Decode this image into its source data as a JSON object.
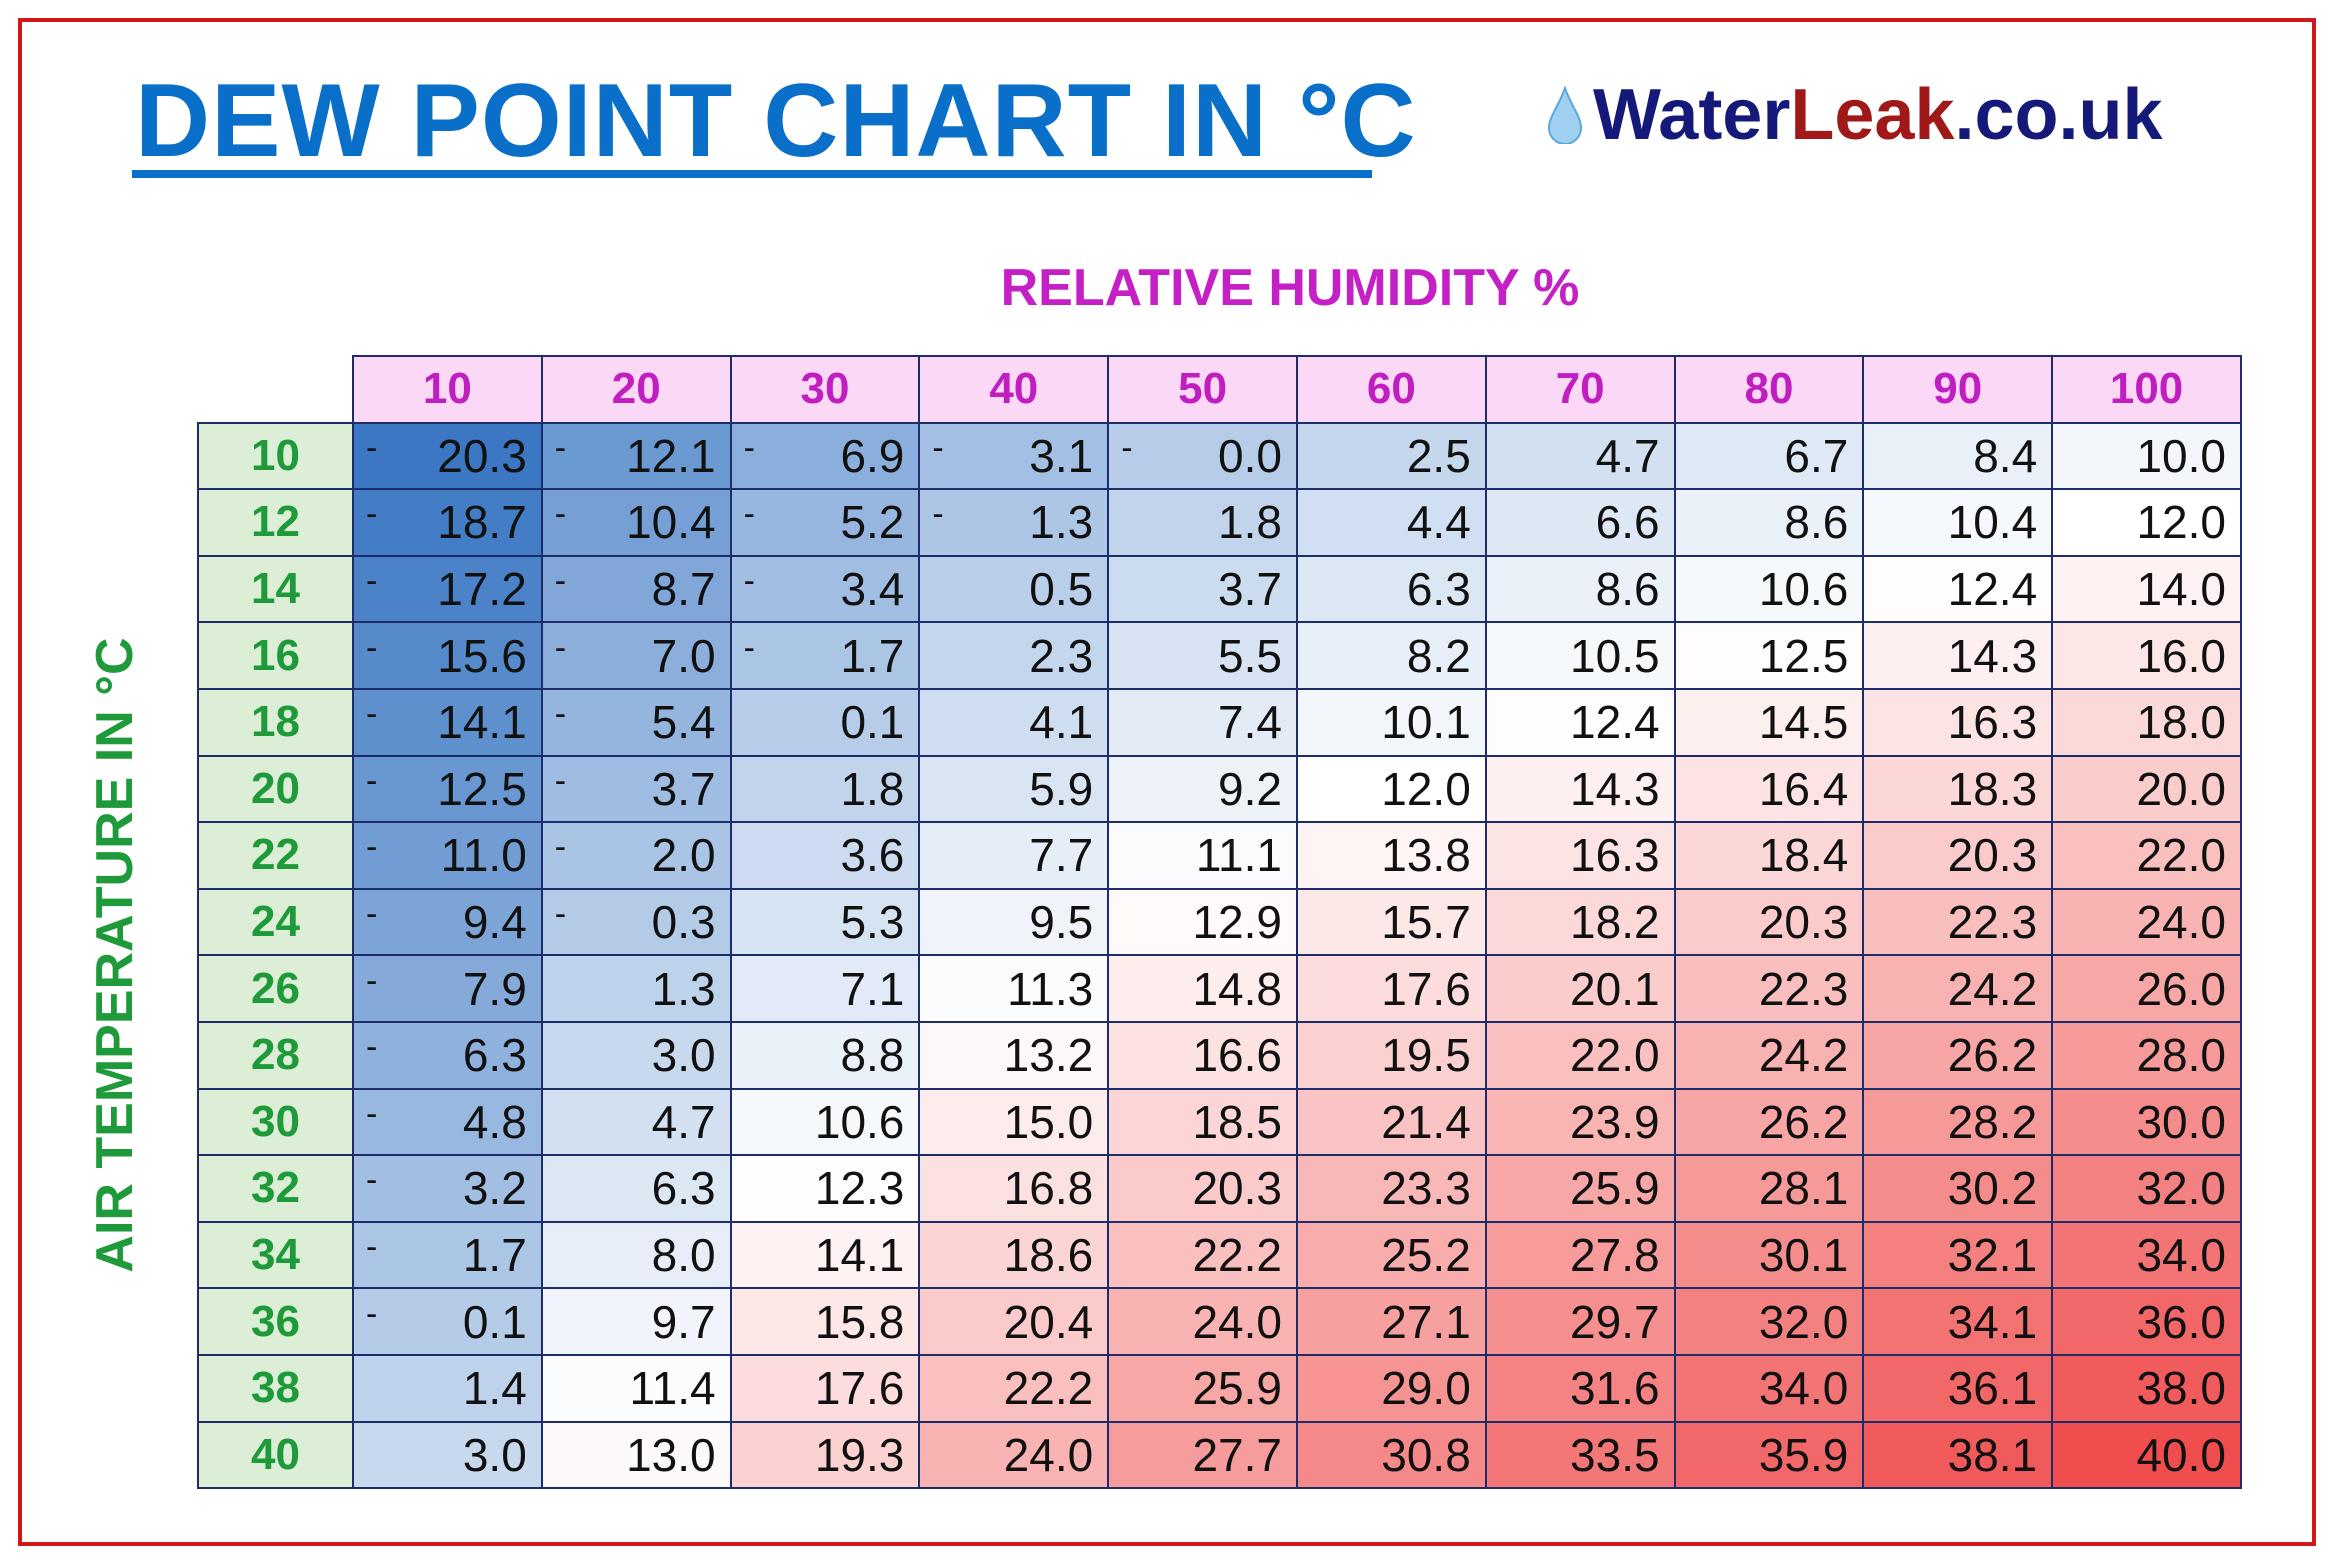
{
  "title": "DEW POINT CHART IN °C",
  "logo": {
    "part1": "Water",
    "part2": "Leak",
    "part3": ".co.uk"
  },
  "colors": {
    "title": "#0a6fc8",
    "humidity": "#c520c5",
    "temperature": "#1e9a3a",
    "border": "#d01818",
    "cold": "#3b77c3",
    "mid": "#ffffff",
    "warm": "#f04e4e"
  },
  "chart_data": {
    "type": "table",
    "title": "DEW POINT CHART IN °C",
    "xlabel": "RELATIVE HUMIDITY %",
    "ylabel": "AIR TEMPERATURE IN °C",
    "columns": [
      10,
      20,
      30,
      40,
      50,
      60,
      70,
      80,
      90,
      100
    ],
    "rows": [
      10,
      12,
      14,
      16,
      18,
      20,
      22,
      24,
      26,
      28,
      30,
      32,
      34,
      36,
      38,
      40
    ],
    "values": [
      [
        -20.3,
        -12.1,
        -6.9,
        -3.1,
        -0.0,
        2.5,
        4.7,
        6.7,
        8.4,
        10.0
      ],
      [
        -18.7,
        -10.4,
        -5.2,
        -1.3,
        1.8,
        4.4,
        6.6,
        8.6,
        10.4,
        12.0
      ],
      [
        -17.2,
        -8.7,
        -3.4,
        0.5,
        3.7,
        6.3,
        8.6,
        10.6,
        12.4,
        14.0
      ],
      [
        -15.6,
        -7.0,
        -1.7,
        2.3,
        5.5,
        8.2,
        10.5,
        12.5,
        14.3,
        16.0
      ],
      [
        -14.1,
        -5.4,
        0.1,
        4.1,
        7.4,
        10.1,
        12.4,
        14.5,
        16.3,
        18.0
      ],
      [
        -12.5,
        -3.7,
        1.8,
        5.9,
        9.2,
        12.0,
        14.3,
        16.4,
        18.3,
        20.0
      ],
      [
        -11.0,
        -2.0,
        3.6,
        7.7,
        11.1,
        13.8,
        16.3,
        18.4,
        20.3,
        22.0
      ],
      [
        -9.4,
        -0.3,
        5.3,
        9.5,
        12.9,
        15.7,
        18.2,
        20.3,
        22.3,
        24.0
      ],
      [
        -7.9,
        1.3,
        7.1,
        11.3,
        14.8,
        17.6,
        20.1,
        22.3,
        24.2,
        26.0
      ],
      [
        -6.3,
        3.0,
        8.8,
        13.2,
        16.6,
        19.5,
        22.0,
        24.2,
        26.2,
        28.0
      ],
      [
        -4.8,
        4.7,
        10.6,
        15.0,
        18.5,
        21.4,
        23.9,
        26.2,
        28.2,
        30.0
      ],
      [
        -3.2,
        6.3,
        12.3,
        16.8,
        20.3,
        23.3,
        25.9,
        28.1,
        30.2,
        32.0
      ],
      [
        -1.7,
        8.0,
        14.1,
        18.6,
        22.2,
        25.2,
        27.8,
        30.1,
        32.1,
        34.0
      ],
      [
        -0.1,
        9.7,
        15.8,
        20.4,
        24.0,
        27.1,
        29.7,
        32.0,
        34.1,
        36.0
      ],
      [
        1.4,
        11.4,
        17.6,
        22.2,
        25.9,
        29.0,
        31.6,
        34.0,
        36.1,
        38.0
      ],
      [
        3.0,
        13.0,
        19.3,
        24.0,
        27.7,
        30.8,
        33.5,
        35.9,
        38.1,
        40.0
      ]
    ]
  }
}
